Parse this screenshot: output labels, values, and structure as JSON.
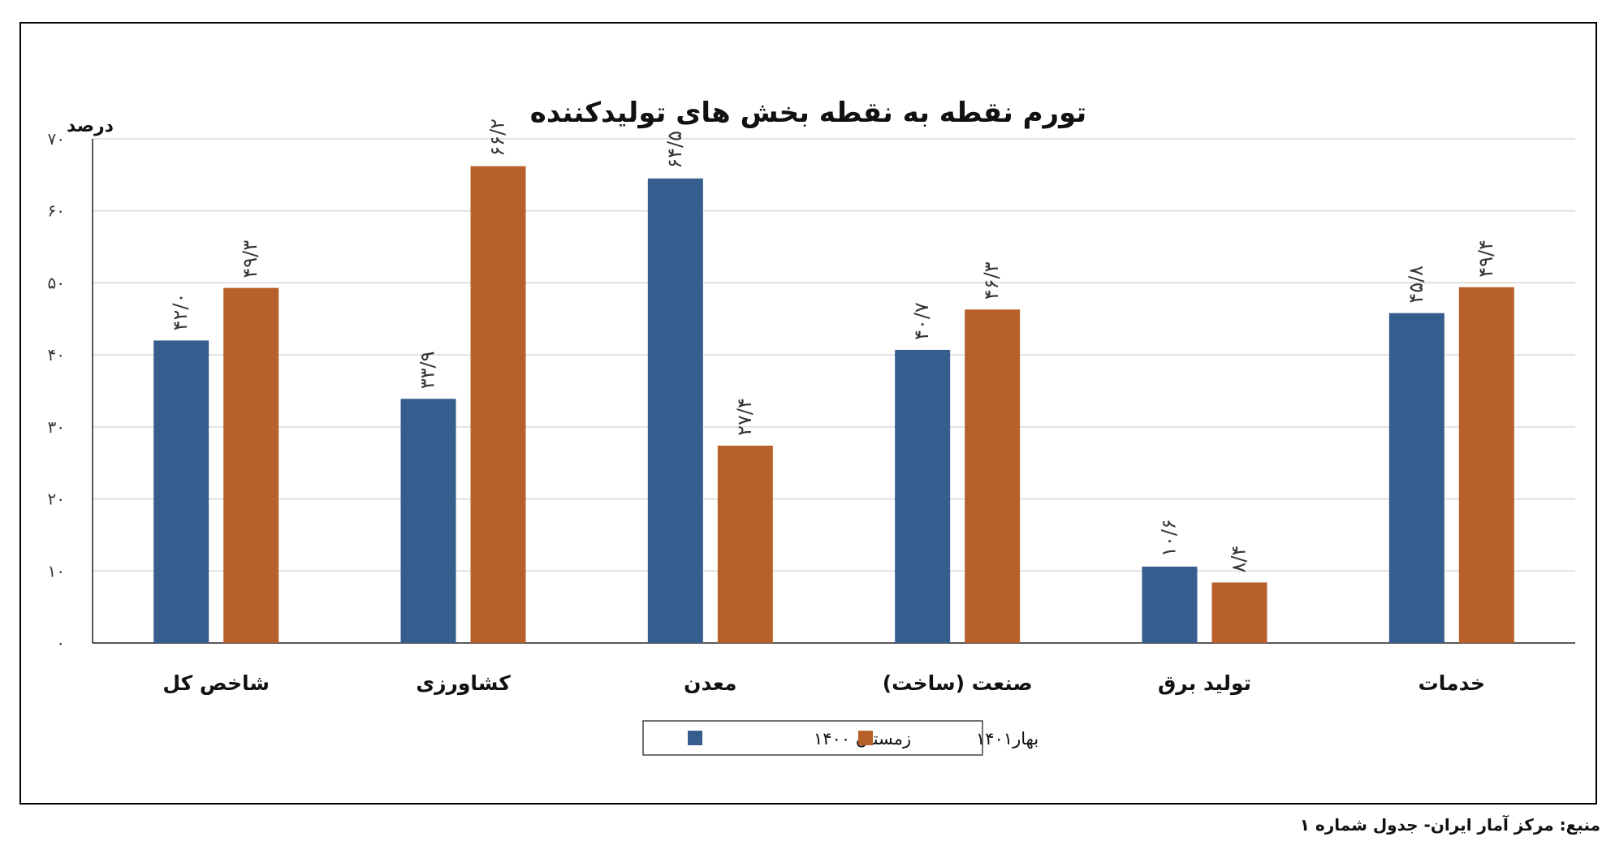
{
  "chart_data": {
    "type": "bar",
    "title": "تورم نقطه به نقطه بخش های تولیدکننده",
    "ylabel": "درصد",
    "ylim": [
      0,
      70
    ],
    "yticks": [
      0,
      10,
      20,
      30,
      40,
      50,
      60,
      70
    ],
    "ytick_labels": [
      "۰",
      "۱۰",
      "۲۰",
      "۳۰",
      "۴۰",
      "۵۰",
      "۶۰",
      "۷۰"
    ],
    "grid": true,
    "legend_position": "bottom",
    "categories": [
      "شاخص کل",
      "کشاورزی",
      "معدن",
      "صنعت (ساخت)",
      "تولید برق",
      "خدمات"
    ],
    "series": [
      {
        "name": "زمستان ۱۴۰۰",
        "color": "#355e8e",
        "values": [
          42.0,
          33.9,
          64.5,
          40.7,
          10.6,
          45.8
        ],
        "labels": [
          "۴۲/۰",
          "۳۳/۹",
          "۶۴/۵",
          "۴۰/۷",
          "۱۰/۶",
          "۴۵/۸"
        ]
      },
      {
        "name": "بهار۱۴۰۱",
        "color": "#b8602a",
        "values": [
          49.3,
          66.2,
          27.4,
          46.3,
          8.4,
          49.4
        ],
        "labels": [
          "۴۹/۳",
          "۶۶/۲",
          "۲۷/۴",
          "۴۶/۳",
          "۸/۴",
          "۴۹/۴"
        ]
      }
    ]
  },
  "source_note": "منبع: مرکز آمار ایران- جدول شماره ۱"
}
